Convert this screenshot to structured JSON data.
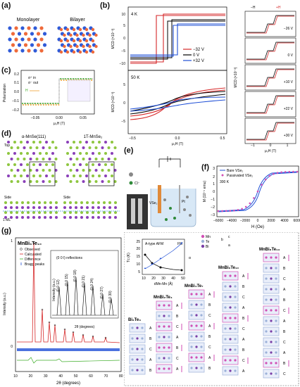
{
  "panel_labels": [
    "(a)",
    "(b)",
    "(c)",
    "(d)",
    "(e)",
    "(f)",
    "(g)"
  ],
  "panel_a": {
    "monolayer_label": "Monolayer",
    "bilayer_label": "Bilayer"
  },
  "panel_b": {
    "top_temp": "4 K",
    "bottom_temp": "50 K",
    "ylabel": "MCD (×10⁻³)",
    "xlabel": "μ₀H (T)",
    "legend": [
      "−32 V",
      "0 V",
      "+32 V"
    ],
    "top_yticks": [
      "10",
      "5",
      "0",
      "−5",
      "−10"
    ],
    "bottom_yticks": [
      "5",
      "0",
      "−5"
    ],
    "xticks": [
      "−0.5",
      "0.0",
      "0.5"
    ],
    "right_panels": [
      "−26 V",
      "0 V",
      "+10 V",
      "+22 V",
      "+30 V"
    ],
    "right_legend": [
      "−H",
      "+H"
    ],
    "right_xticks": [
      "−1",
      "0",
      "1"
    ],
    "right_ylabel": "MCD (×10⁻³)"
  },
  "panel_c": {
    "legend": [
      "σ⁺ in",
      "σ⁻ out"
    ],
    "ylabel": "Polarization",
    "xlabel": "μ₀H (T)",
    "xticks": [
      "−0.05",
      "0.00",
      "0.05"
    ],
    "yticks": [
      "0.2",
      "0.1",
      "0.0",
      "−0.1",
      "−0.2"
    ],
    "arrows": [
      "H",
      "H"
    ]
  },
  "panel_d": {
    "left_title": "α-MnSe(111)",
    "right_title": "1T-MnSe₂",
    "top_label": "Top",
    "side_label": "Side",
    "side_label_2": "Side",
    "ml_label": "1 ML"
  },
  "panel_e": {
    "labels": [
      "Cl⁻",
      "VSe₂",
      "Pt"
    ]
  },
  "panel_f": {
    "legend": [
      "Bare VSe₂",
      "Passivated VSe₂"
    ],
    "temp": "300 K",
    "ylabel": "M (10⁻⁵ emu)",
    "xlabel": "H (Oe)",
    "yticks": [
      "3",
      "2",
      "1",
      "0",
      "−1",
      "−2",
      "−3"
    ],
    "xticks": [
      "−6000",
      "−4000",
      "−2000",
      "0",
      "2000",
      "4000",
      "6000"
    ]
  },
  "panel_g_left": {
    "title": "MnBi₆Te₁₀",
    "legend": [
      "Observed",
      "Calculated",
      "Difference",
      "Bragg peaks"
    ],
    "inset_title": "(0 0 l) reflections",
    "inset_peaks": [
      "(0 0 12)",
      "(0 0 15)",
      "(0 0 18)",
      "(0 0 21)",
      "(0 0 24)",
      "(0 0 27)",
      "(0 0 30)"
    ],
    "inset_xlabel": "2θ (degrees)",
    "inset_ylabel": "Intensity (a.u.)",
    "ylabel": "Intensity (a.u.)",
    "xlabel": "2θ (degrees)",
    "xticks": [
      "10",
      "20",
      "30",
      "40",
      "50",
      "60",
      "70",
      "80"
    ],
    "yticks": [
      "1",
      "0"
    ]
  },
  "panel_g_right": {
    "inset_left_label": "A-type AFM",
    "inset_right_label": "FM",
    "inset_ylabel": "Tᴄ (K)",
    "inset_y2label": "α",
    "inset_xlabel": "dMn-Mn (Å)",
    "inset_xticks": [
      "10",
      "20",
      "30",
      "40",
      "50"
    ],
    "inset_yticks": [
      "25",
      "20",
      "15",
      "10",
      "5"
    ],
    "element_legend": [
      "Mn",
      "Te",
      "Bi"
    ],
    "axes": [
      "b",
      "c",
      "a"
    ],
    "structures": [
      "Bi₂Te₃",
      "MnBi₂Te₄",
      "MnBi₄Te₇",
      "MnBi₆Te₁₀",
      "MnBi₈Te₁₃"
    ],
    "layer_A": "A",
    "layer_B": "B",
    "layer_C": "C"
  },
  "colors": {
    "red": "#d62728",
    "blue": "#1f4fd6",
    "black": "#000000",
    "magenta": "#d14fb5",
    "purple": "#7a3ea6",
    "green": "#3fae2a",
    "orange": "#f0a030",
    "gray_blue": "#9bb0d8"
  }
}
